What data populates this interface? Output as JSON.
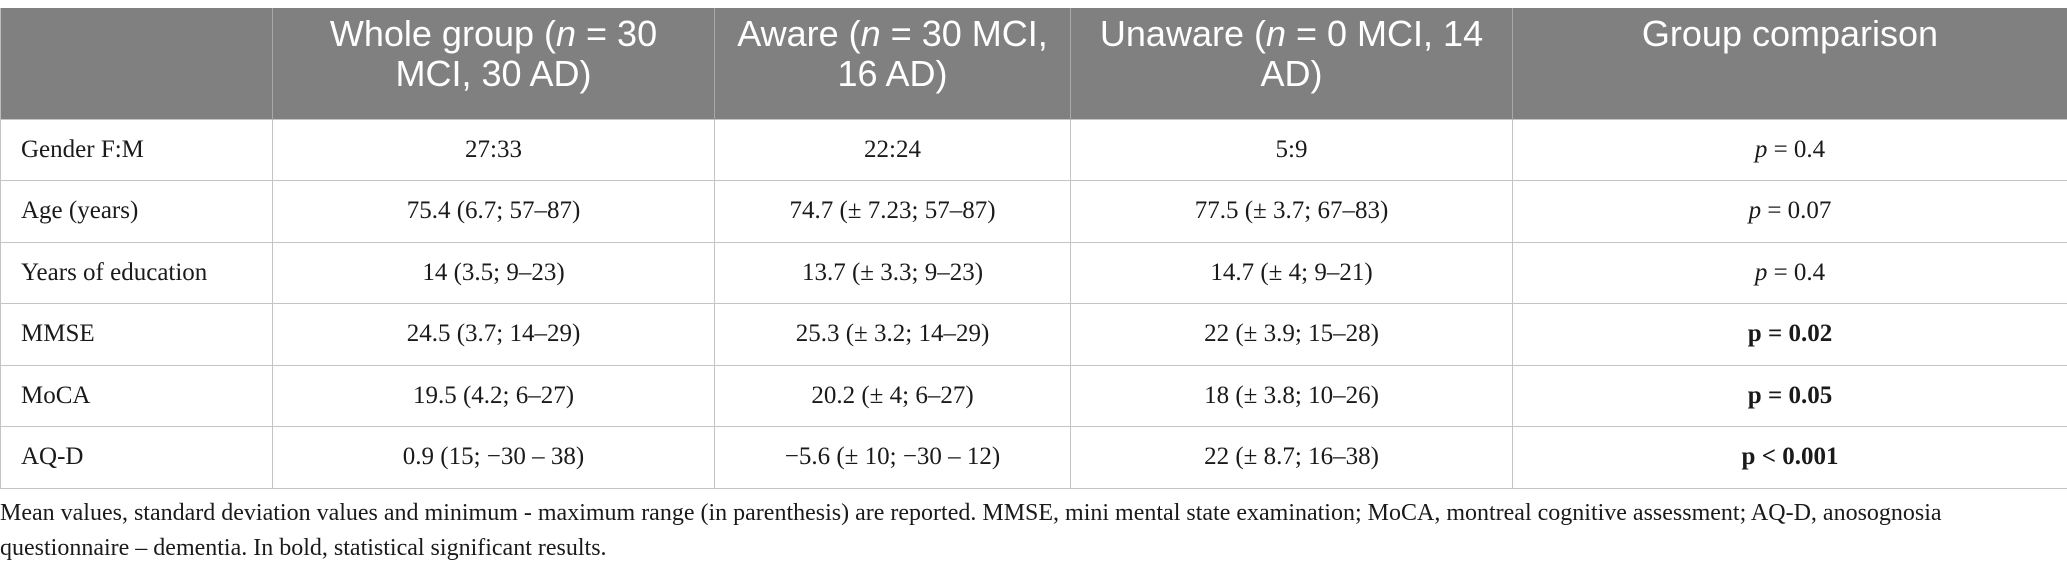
{
  "table": {
    "headers": [
      {
        "pre": "",
        "it": "",
        "post": ""
      },
      {
        "pre": "Whole group (",
        "it": "n",
        "post": " = 30 MCI, 30 AD)"
      },
      {
        "pre": "Aware (",
        "it": "n",
        "post": " = 30 MCI, 16 AD)"
      },
      {
        "pre": "Unaware (",
        "it": "n",
        "post": " = 0 MCI, 14 AD)"
      },
      {
        "pre": "Group comparison",
        "it": "",
        "post": ""
      }
    ],
    "rows": [
      {
        "label": "Gender F:M",
        "whole": "27:33",
        "aware": "22:24",
        "unaware": "5:9",
        "p_prefix": "p",
        "p_value": " = 0.4",
        "significant": false
      },
      {
        "label": "Age (years)",
        "whole": "75.4 (6.7; 57–87)",
        "aware": "74.7 (± 7.23; 57–87)",
        "unaware": "77.5 (± 3.7; 67–83)",
        "p_prefix": "p",
        "p_value": " = 0.07",
        "significant": false
      },
      {
        "label": "Years of education",
        "whole": "14 (3.5; 9–23)",
        "aware": "13.7 (± 3.3; 9–23)",
        "unaware": "14.7 (± 4; 9–21)",
        "p_prefix": "p",
        "p_value": " = 0.4",
        "significant": false
      },
      {
        "label": "MMSE",
        "whole": "24.5 (3.7; 14–29)",
        "aware": "25.3 (± 3.2; 14–29)",
        "unaware": "22 (± 3.9; 15–28)",
        "p_prefix": "p",
        "p_value": " = 0.02",
        "significant": true
      },
      {
        "label": "MoCA",
        "whole": "19.5 (4.2; 6–27)",
        "aware": "20.2 (± 4; 6–27)",
        "unaware": "18 (± 3.8; 10–26)",
        "p_prefix": "p",
        "p_value": " = 0.05",
        "significant": true
      },
      {
        "label": "AQ-D",
        "whole": "0.9 (15; −30 – 38)",
        "aware": "−5.6 (± 10; −30 – 12)",
        "unaware": "22 (± 8.7; 16–38)",
        "p_prefix": "p",
        "p_value": " < 0.001",
        "significant": true
      }
    ]
  },
  "footnote": "Mean values, standard deviation values and minimum - maximum range (in parenthesis) are reported. MMSE, mini mental state examination; MoCA, montreal cognitive assessment; AQ-D, anosognosia questionnaire – dementia. In bold, statistical significant results."
}
